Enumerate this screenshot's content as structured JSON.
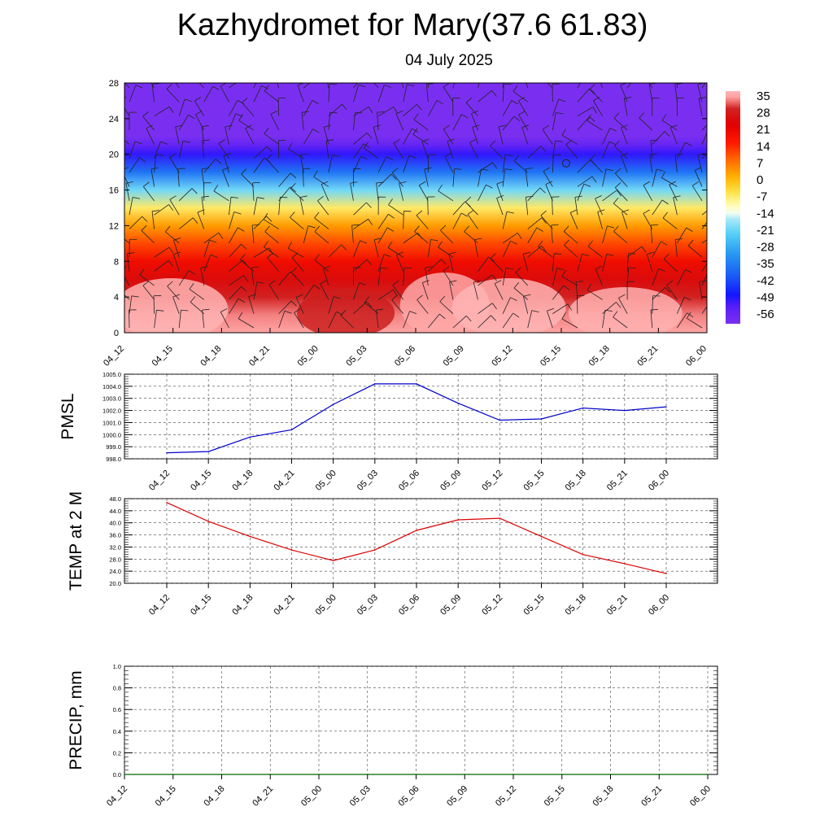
{
  "title": "Kazhydromet for Mary(37.6 61.83)",
  "subtitle": "04 July 2025",
  "time_labels": [
    "04_12",
    "04_15",
    "04_18",
    "04_21",
    "05_00",
    "05_03",
    "05_06",
    "05_09",
    "05_12",
    "05_15",
    "05_18",
    "05_21",
    "06_00"
  ],
  "colors": {
    "pmsl_line": "#0000cc",
    "temp_line": "#dd0000",
    "precip_line": "#006400",
    "grid": "#555555"
  },
  "chart_data": [
    {
      "type": "heatmap",
      "name": "cross-section",
      "title": "",
      "xlabel": "",
      "ylabel": "",
      "x_ticks": [
        "04_12",
        "04_15",
        "04_18",
        "04_21",
        "05_00",
        "05_03",
        "05_06",
        "05_09",
        "05_12",
        "05_15",
        "05_18",
        "05_21",
        "06_00"
      ],
      "y_ticks": [
        "0",
        "4",
        "8",
        "12",
        "16",
        "20",
        "24",
        "28"
      ],
      "ylim": [
        0,
        28
      ],
      "colorbar": {
        "labels": [
          "35",
          "28",
          "21",
          "14",
          "7",
          "0",
          "-7",
          "-14",
          "-21",
          "-28",
          "-35",
          "-42",
          "-49",
          "-56"
        ],
        "range": [
          -60,
          38
        ]
      },
      "temperature_profile": {
        "levels": [
          0,
          2,
          4,
          6,
          8,
          10,
          12,
          14,
          16,
          18,
          20,
          21,
          22,
          24,
          28
        ],
        "values": [
          36,
          34,
          30,
          26,
          20,
          12,
          4,
          -6,
          -20,
          -36,
          -50,
          -55,
          -60,
          -60,
          -60
        ]
      },
      "features": [
        "wind barbs",
        "circle marker near 05_15 at level 19"
      ]
    },
    {
      "type": "line",
      "name": "pmsl",
      "ylabel": "PMSL",
      "ylim": [
        998.0,
        1005.0
      ],
      "y_ticks": [
        "998.0",
        "999.0",
        "1000.0",
        "1001.0",
        "1002.0",
        "1003.0",
        "1004.0",
        "1005.0"
      ],
      "x": [
        "04_12",
        "04_15",
        "04_18",
        "04_21",
        "05_00",
        "05_03",
        "05_06",
        "05_09",
        "05_12",
        "05_15",
        "05_18",
        "05_21",
        "06_00"
      ],
      "values": [
        998.5,
        998.6,
        999.8,
        1000.4,
        1002.5,
        1004.2,
        1004.2,
        1002.6,
        1001.2,
        1001.3,
        1002.2,
        1002.0,
        1002.3
      ]
    },
    {
      "type": "line",
      "name": "temp",
      "ylabel": "TEMP at 2 M",
      "ylim": [
        20.0,
        48.0
      ],
      "y_ticks": [
        "20.0",
        "24.0",
        "28.0",
        "32.0",
        "36.0",
        "40.0",
        "44.0",
        "48.0"
      ],
      "x": [
        "04_12",
        "04_15",
        "04_18",
        "04_21",
        "05_00",
        "05_03",
        "05_06",
        "05_09",
        "05_12",
        "05_15",
        "05_18",
        "05_21",
        "06_00"
      ],
      "values": [
        46.7,
        40.5,
        35.5,
        31.0,
        27.5,
        31.0,
        37.5,
        41.0,
        41.5,
        35.5,
        29.5,
        26.5,
        23.2
      ]
    },
    {
      "type": "line",
      "name": "precip",
      "ylabel": "PRECIP, mm",
      "ylim": [
        0.0,
        1.0
      ],
      "y_ticks": [
        "0.0",
        "0.2",
        "0.4",
        "0.6",
        "0.8",
        "1.0"
      ],
      "x": [
        "04_12",
        "04_15",
        "04_18",
        "04_21",
        "05_00",
        "05_03",
        "05_06",
        "05_09",
        "05_12",
        "05_15",
        "05_18",
        "05_21",
        "06_00"
      ],
      "values": [
        0,
        0,
        0,
        0,
        0,
        0,
        0,
        0,
        0,
        0,
        0,
        0,
        0
      ]
    }
  ]
}
